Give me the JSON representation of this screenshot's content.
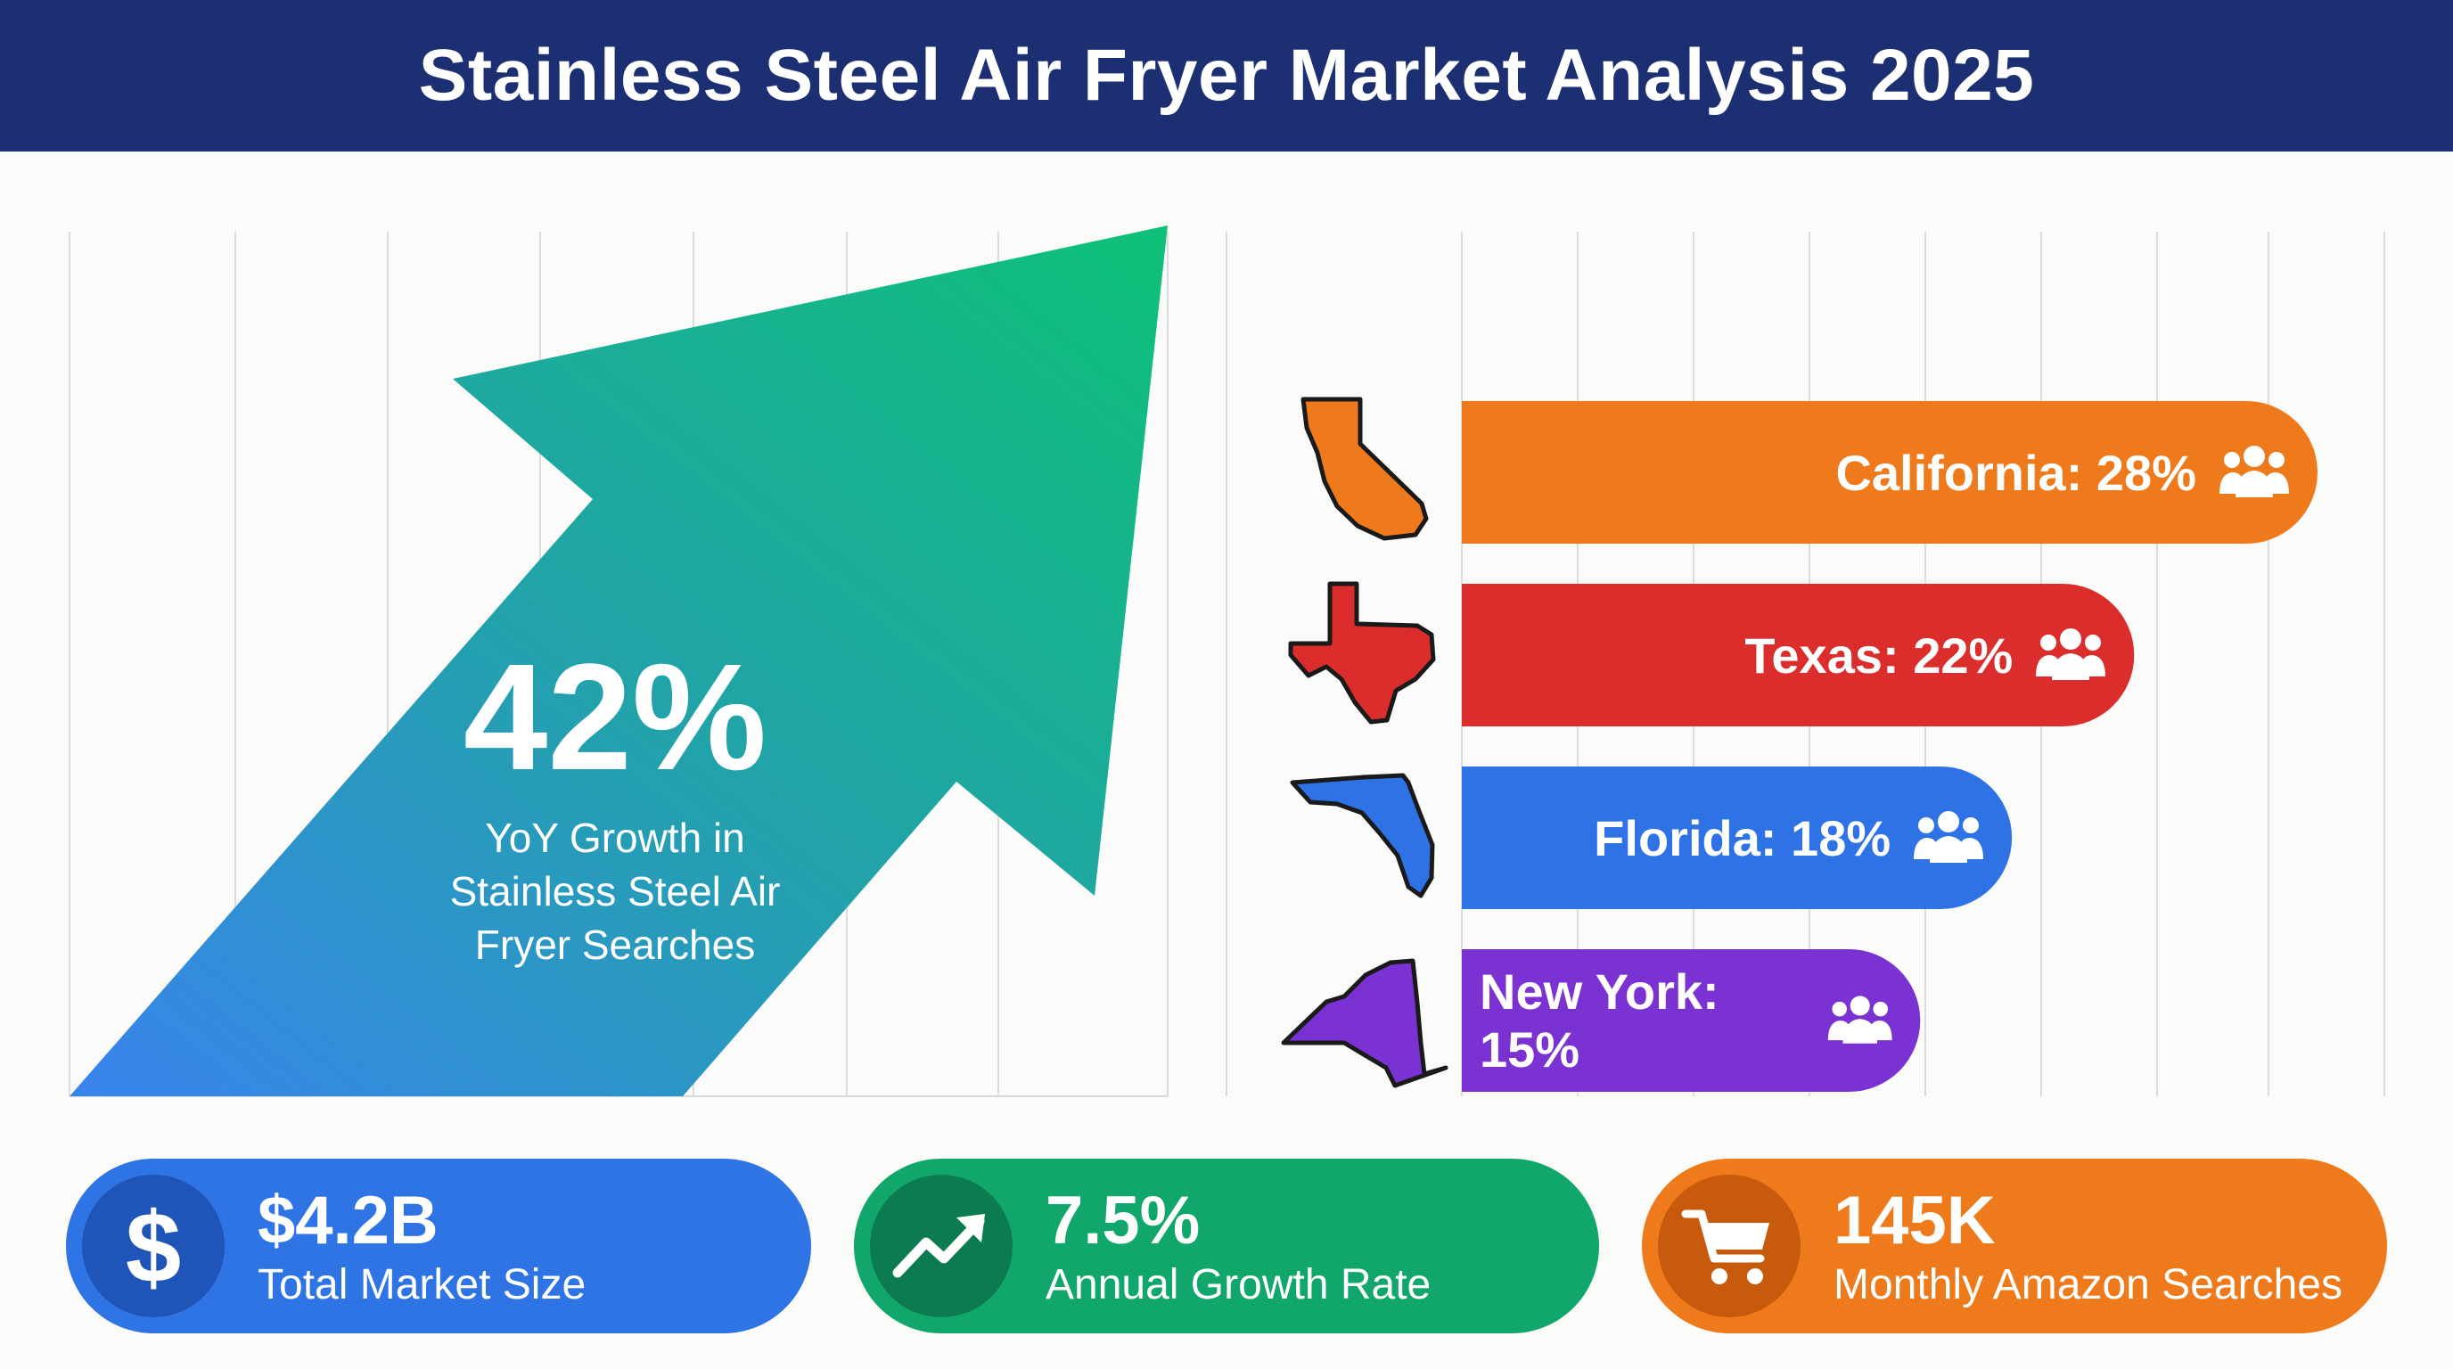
{
  "title": "Stainless Steel Air Fryer Market Analysis 2025",
  "growth": {
    "value": "42%",
    "description_lines": [
      "YoY Growth in",
      "Stainless Steel Air",
      "Fryer Searches"
    ]
  },
  "chart_data": {
    "type": "bar",
    "orientation": "horizontal",
    "categories": [
      "California",
      "Texas",
      "Florida",
      "New York"
    ],
    "values": [
      28,
      22,
      18,
      15
    ],
    "labels": [
      "California: 28%",
      "Texas: 22%",
      "Florida: 18%",
      "New York: 15%"
    ],
    "colors": [
      "#ee7a1c",
      "#dc2d2d",
      "#2f72e6",
      "#7a33d2"
    ],
    "icons": [
      "california-map-icon",
      "texas-map-icon",
      "florida-map-icon",
      "new-york-map-icon"
    ],
    "grid": true
  },
  "kpis": [
    {
      "value": "$4.2B",
      "label": "Total Market Size",
      "icon": "dollar-icon",
      "color": "#2f74e4",
      "circle": "#1f55b8"
    },
    {
      "value": "7.5%",
      "label": "Annual Growth Rate",
      "icon": "trending-up-icon",
      "color": "#11a66c",
      "circle": "#0c7c50"
    },
    {
      "value": "145K",
      "label": "Monthly Amazon Searches",
      "icon": "shopping-cart-icon",
      "color": "#ee7a1c",
      "circle": "#c75a0d"
    }
  ]
}
